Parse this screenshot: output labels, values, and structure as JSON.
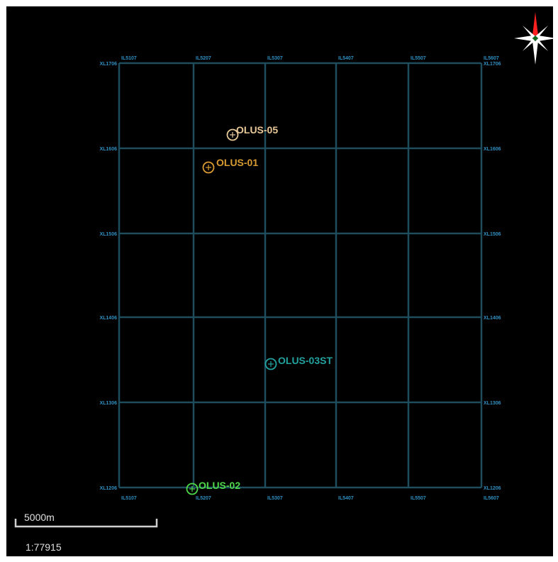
{
  "map": {
    "inlines": [
      "IL5107",
      "IL5207",
      "IL5307",
      "IL5407",
      "IL5507",
      "IL5607"
    ],
    "crosslines": [
      "XL1706",
      "XL1606",
      "XL1506",
      "XL1406",
      "XL1306",
      "XL1206"
    ],
    "grid_color": "#1e4d5e",
    "label_color": "#2f8fc0",
    "background": "#000000"
  },
  "wells": [
    {
      "name": "OLUS-05",
      "color": "#e8c898"
    },
    {
      "name": "OLUS-01",
      "color": "#d99b32"
    },
    {
      "name": "OLUS-03ST",
      "color": "#23a3a0"
    },
    {
      "name": "OLUS-02",
      "color": "#4ed84a"
    }
  ],
  "north_arrow": {
    "icon": "compass-north-arrow-icon",
    "colors": [
      "#ff2020",
      "#ffffff"
    ]
  },
  "scale": {
    "bar_label": "5000m",
    "ratio": "1:77915"
  }
}
